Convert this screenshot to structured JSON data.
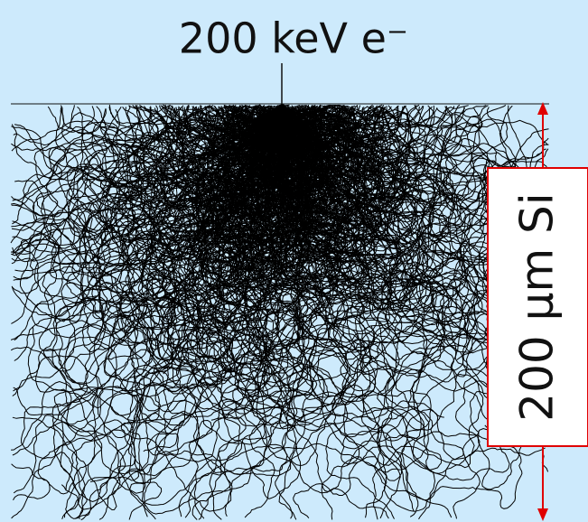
{
  "title": "200 keV e⁻",
  "scale_label": "200 µm Si"
}
